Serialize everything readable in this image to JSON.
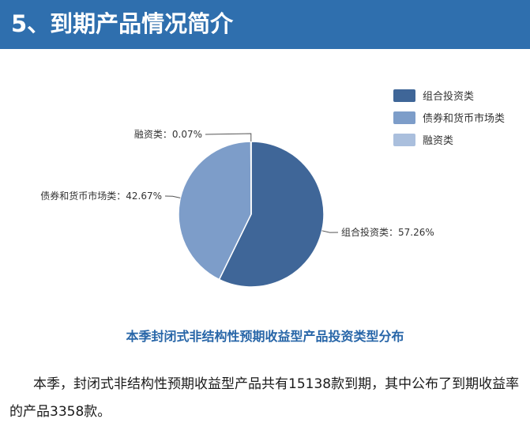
{
  "header": {
    "title": "5、到期产品情况简介"
  },
  "chart_data": {
    "type": "pie",
    "caption": "本季封闭式非结构性预期收益型产品投资类型分布",
    "slices": [
      {
        "label": "组合投资类",
        "value": 57.26,
        "value_label": "57.26%",
        "color": "#3f6698"
      },
      {
        "label": "债券和货币市场类",
        "value": 42.67,
        "value_label": "42.67%",
        "color": "#7d9dc9"
      },
      {
        "label": "融资类",
        "value": 0.07,
        "value_label": "0.07%",
        "color": "#aabfdd"
      }
    ],
    "legend": {
      "position": "top-right",
      "items": [
        "组合投资类",
        "债券和货币市场类",
        "融资类"
      ]
    }
  },
  "body_text": "本季，封闭式非结构性预期收益型产品共有15138款到期，其中公布了到期收益率的产品3358款。"
}
